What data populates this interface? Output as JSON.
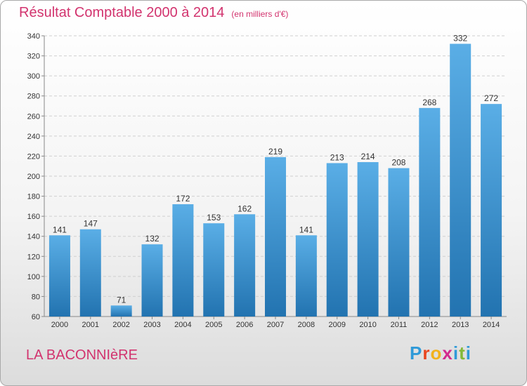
{
  "header": {
    "title": "Résultat Comptable 2000 à 2014",
    "subtitle": "(en milliers d'€)"
  },
  "footer": {
    "commune": "LA BACONNIèRE",
    "logo_letters": [
      "P",
      "r",
      "o",
      "x",
      "i",
      "t",
      "i"
    ]
  },
  "colors": {
    "title": "#d2336e",
    "bar_light": "#5aaee6",
    "bar_dark": "#2273b0"
  },
  "chart_data": {
    "type": "bar",
    "title": "Résultat Comptable 2000 à 2014",
    "subtitle": "(en milliers d'€)",
    "categories": [
      "2000",
      "2001",
      "2002",
      "2003",
      "2004",
      "2005",
      "2006",
      "2007",
      "2008",
      "2009",
      "2010",
      "2011",
      "2012",
      "2013",
      "2014"
    ],
    "values": [
      141,
      147,
      71,
      132,
      172,
      153,
      162,
      219,
      141,
      213,
      214,
      208,
      268,
      332,
      272
    ],
    "ylim": [
      60,
      340
    ],
    "yticks": [
      60,
      80,
      100,
      120,
      140,
      160,
      180,
      200,
      220,
      240,
      260,
      280,
      300,
      320,
      340
    ],
    "grid": true
  }
}
